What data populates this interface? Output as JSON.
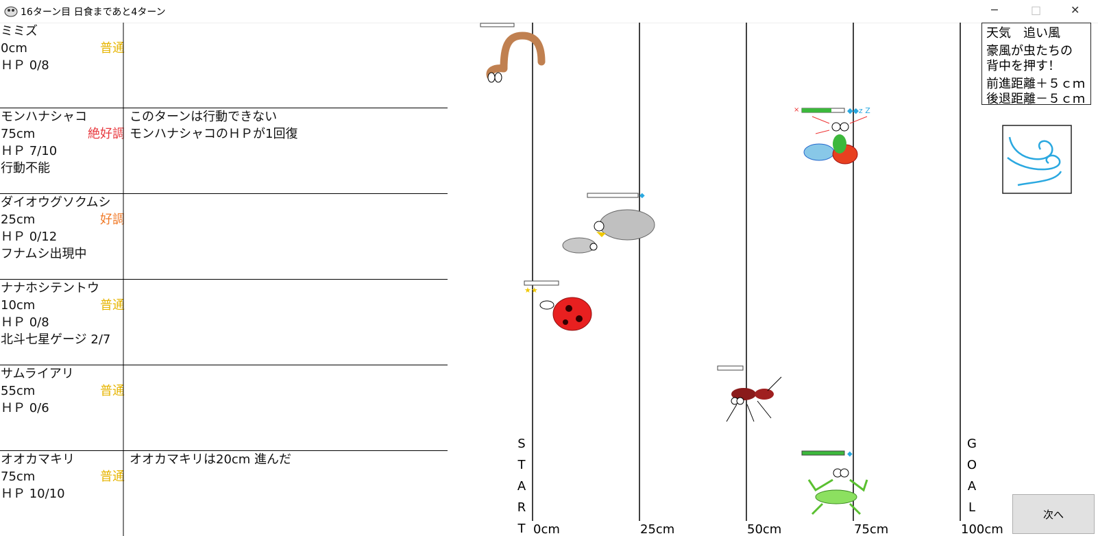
{
  "window": {
    "title": "16ターン目 日食まであと4ターン"
  },
  "racers": [
    {
      "name": "ミミズ",
      "distance": "0cm",
      "condition": "普通",
      "condition_color": "#e6b400",
      "hp": "ＨＰ 0/8"
    },
    {
      "name": "モンハナシャコ",
      "distance": "75cm",
      "condition": "絶好調",
      "condition_color": "#e8383d",
      "hp": "ＨＰ 7/10",
      "status": "行動不能",
      "log": [
        "このターンは行動できない",
        "モンハナシャコのＨＰが1回復"
      ]
    },
    {
      "name": "ダイオウグソクムシ",
      "distance": "25cm",
      "condition": "好調",
      "condition_color": "#f07a28",
      "hp": "ＨＰ 0/12",
      "status": "フナムシ出現中"
    },
    {
      "name": "ナナホシテントウ",
      "distance": "10cm",
      "condition": "普通",
      "condition_color": "#e6b400",
      "hp": "ＨＰ 0/8",
      "status": "北斗七星ゲージ 2/7"
    },
    {
      "name": "サムライアリ",
      "distance": "55cm",
      "condition": "普通",
      "condition_color": "#e6b400",
      "hp": "ＨＰ 0/6"
    },
    {
      "name": "オオカマキリ",
      "distance": "75cm",
      "condition": "普通",
      "condition_color": "#e6b400",
      "hp": "ＨＰ 10/10",
      "log": [
        "オオカマキリは20cm 進んだ"
      ]
    }
  ],
  "track": {
    "distance_labels": [
      "0cm",
      "25cm",
      "50cm",
      "75cm",
      "100cm"
    ],
    "start_label": [
      "S",
      "T",
      "A",
      "R",
      "T"
    ],
    "goal_label": [
      "G",
      "O",
      "A",
      "L"
    ]
  },
  "weather": {
    "lines": [
      "天気　追い風",
      "豪風が虫たちの",
      "背中を押す！",
      "前進距離＋５ｃｍ",
      "後退距離－５ｃｍ"
    ]
  },
  "button": {
    "label": "次へ"
  }
}
